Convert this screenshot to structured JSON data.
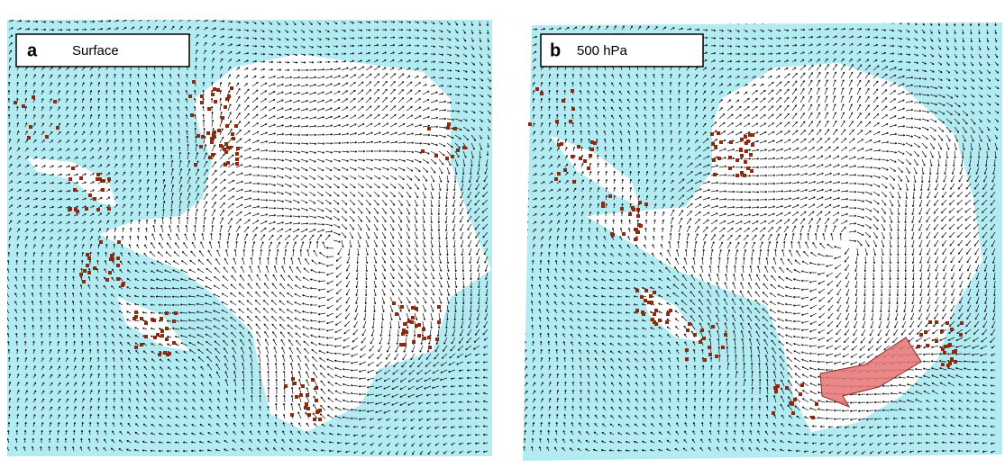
{
  "panels": [
    {
      "letter": "a",
      "label": "Surface"
    },
    {
      "letter": "b",
      "label": "500 hPa"
    }
  ]
}
